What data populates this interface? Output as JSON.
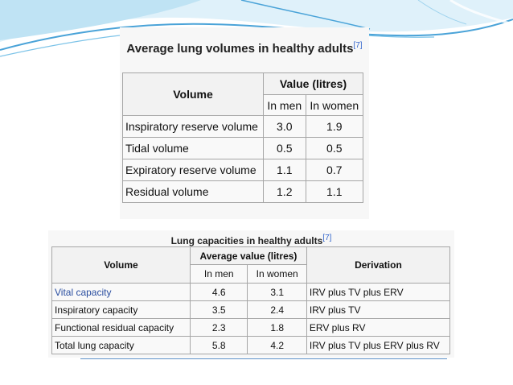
{
  "colors": {
    "swoosh_blue": "#4aa3d8",
    "swoosh_light": "#bfe3f4",
    "link": "#2a4ea0"
  },
  "table1": {
    "title": "Average lung volumes in healthy adults",
    "cite": "[7]",
    "col_volume": "Volume",
    "col_value": "Value (litres)",
    "col_men": "In men",
    "col_women": "In women",
    "rows": [
      {
        "name": "Inspiratory reserve volume",
        "men": "3.0",
        "women": "1.9"
      },
      {
        "name": "Tidal volume",
        "men": "0.5",
        "women": "0.5"
      },
      {
        "name": "Expiratory reserve volume",
        "men": "1.1",
        "women": "0.7"
      },
      {
        "name": "Residual volume",
        "men": "1.2",
        "women": "1.1"
      }
    ]
  },
  "table2": {
    "title": "Lung capacities in healthy adults",
    "cite": "[7]",
    "col_volume": "Volume",
    "col_value": "Average value (litres)",
    "col_men": "In men",
    "col_women": "In women",
    "col_derivation": "Derivation",
    "rows": [
      {
        "name": "Vital capacity",
        "men": "4.6",
        "women": "3.1",
        "derivation": "IRV plus TV plus ERV"
      },
      {
        "name": "Inspiratory capacity",
        "men": "3.5",
        "women": "2.4",
        "derivation": "IRV plus TV"
      },
      {
        "name": "Functional residual capacity",
        "men": "2.3",
        "women": "1.8",
        "derivation": "ERV plus RV"
      },
      {
        "name": "Total lung capacity",
        "men": "5.8",
        "women": "4.2",
        "derivation": "IRV plus TV plus ERV plus RV"
      }
    ]
  }
}
